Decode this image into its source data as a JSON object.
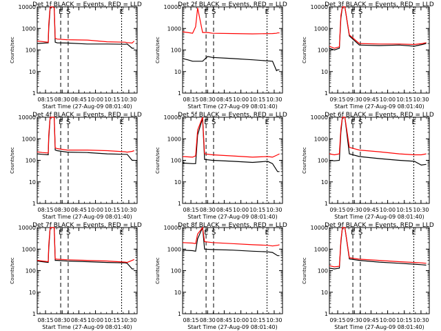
{
  "chart_data": [
    {
      "type": "line",
      "title": "Det 1f  BLACK = Events, RED = LLD",
      "xlabel": "Start Time (27-Aug-09 08:01:40)",
      "ylabel": "Counts/sec",
      "scale": "log",
      "ylim": [
        1,
        10000
      ],
      "y_ticks": [
        "1",
        "10",
        "100",
        "1000",
        "10000"
      ],
      "x_ticks": [
        "08:15",
        "08:30",
        "08:45",
        "10:00",
        "10:15",
        "10:30"
      ],
      "markers": [
        "E",
        "S",
        "E"
      ],
      "series": [
        {
          "name": "Events",
          "color": "#000000",
          "x": [
            0,
            0.11,
            0.115,
            0.13,
            0.155,
            0.17,
            0.18,
            0.2,
            0.3,
            0.5,
            0.7,
            0.88,
            0.9,
            0.95,
            0.97
          ],
          "y": [
            200,
            215,
            1000,
            9000,
            10000,
            10000,
            230,
            215,
            210,
            190,
            190,
            185,
            190,
            120,
            120
          ]
        },
        {
          "name": "LLD",
          "color": "#ff0000",
          "x": [
            0,
            0.11,
            0.115,
            0.13,
            0.155,
            0.17,
            0.18,
            0.2,
            0.3,
            0.5,
            0.7,
            0.88,
            0.9,
            0.95,
            0.97
          ],
          "y": [
            260,
            230,
            1500,
            10000,
            10000,
            9000,
            350,
            320,
            300,
            290,
            240,
            230,
            220,
            210,
            260
          ]
        }
      ]
    },
    {
      "type": "line",
      "title": "Det 2f  BLACK = Events, RED = LLD",
      "xlabel": "Start Time (27-Aug-09 08:01:40)",
      "ylabel": "Counts/sec",
      "scale": "log",
      "ylim": [
        1,
        10000
      ],
      "y_ticks": [
        "1",
        "10",
        "100",
        "1000",
        "10000"
      ],
      "x_ticks": [
        "08:15",
        "08:30",
        "08:45",
        "10:00",
        "10:15",
        "10:30"
      ],
      "markers": [
        "E",
        "S",
        "E"
      ],
      "series": [
        {
          "name": "Events",
          "color": "#000000",
          "x": [
            0,
            0.05,
            0.1,
            0.13,
            0.15,
            0.2,
            0.25,
            0.3,
            0.5,
            0.7,
            0.9,
            0.94,
            0.95,
            0.97
          ],
          "y": [
            40,
            35,
            30,
            30,
            30,
            30,
            50,
            45,
            40,
            35,
            30,
            11,
            12,
            12
          ]
        },
        {
          "name": "LLD",
          "color": "#ff0000",
          "x": [
            0,
            0.05,
            0.1,
            0.13,
            0.15,
            0.2,
            0.25,
            0.3,
            0.5,
            0.7,
            0.9,
            0.94,
            0.95,
            0.97
          ],
          "y": [
            700,
            650,
            600,
            1200,
            9000,
            650,
            650,
            600,
            580,
            560,
            580,
            600,
            620,
            620
          ]
        }
      ]
    },
    {
      "type": "line",
      "title": "Det 3f  BLACK = Events, RED = LLD",
      "xlabel": "Start Time (27-Aug-09 08:01:40)",
      "ylabel": "Counts/sec",
      "scale": "log",
      "ylim": [
        1,
        10000
      ],
      "y_ticks": [
        "1",
        "10",
        "100",
        "1000",
        "10000"
      ],
      "x_ticks": [
        "09:15",
        "09:30",
        "09:45",
        "10:00",
        "10:15",
        "10:30"
      ],
      "markers": [
        "E",
        "S",
        "E"
      ],
      "series": [
        {
          "name": "Events",
          "color": "#000000",
          "x": [
            0,
            0.05,
            0.1,
            0.115,
            0.13,
            0.155,
            0.2,
            0.3,
            0.5,
            0.7,
            0.85,
            0.93,
            0.97
          ],
          "y": [
            120,
            100,
            120,
            3000,
            10000,
            10000,
            450,
            170,
            160,
            170,
            150,
            180,
            200
          ]
        },
        {
          "name": "LLD",
          "color": "#ff0000",
          "x": [
            0,
            0.05,
            0.1,
            0.115,
            0.13,
            0.155,
            0.2,
            0.3,
            0.5,
            0.7,
            0.85,
            0.93,
            0.97
          ],
          "y": [
            150,
            120,
            140,
            4000,
            10000,
            10000,
            500,
            200,
            190,
            190,
            180,
            200,
            220
          ]
        }
      ]
    },
    {
      "type": "line",
      "title": "Det 4f  BLACK = Events, RED = LLD",
      "xlabel": "Start Time (27-Aug-09 08:01:40)",
      "ylabel": "Counts/sec",
      "scale": "log",
      "ylim": [
        1,
        10000
      ],
      "y_ticks": [
        "1",
        "10",
        "100",
        "1000",
        "10000"
      ],
      "x_ticks": [
        "08:15",
        "08:30",
        "08:45",
        "10:00",
        "10:15",
        "10:30"
      ],
      "markers": [
        "E",
        "S",
        "E"
      ],
      "series": [
        {
          "name": "Events",
          "color": "#000000",
          "x": [
            0,
            0.05,
            0.11,
            0.115,
            0.13,
            0.155,
            0.17,
            0.18,
            0.2,
            0.3,
            0.5,
            0.7,
            0.88,
            0.9,
            0.95,
            0.97
          ],
          "y": [
            200,
            190,
            180,
            1000,
            10000,
            10000,
            10000,
            300,
            280,
            240,
            230,
            200,
            190,
            190,
            100,
            100
          ]
        },
        {
          "name": "LLD",
          "color": "#ff0000",
          "x": [
            0,
            0.05,
            0.11,
            0.115,
            0.13,
            0.155,
            0.17,
            0.18,
            0.2,
            0.3,
            0.5,
            0.7,
            0.88,
            0.9,
            0.95,
            0.97
          ],
          "y": [
            250,
            230,
            220,
            1500,
            10000,
            10000,
            10000,
            380,
            350,
            300,
            300,
            280,
            250,
            240,
            260,
            280
          ]
        }
      ]
    },
    {
      "type": "line",
      "title": "Det 5f  BLACK = Events, RED = LLD",
      "xlabel": "Start Time (27-Aug-09 08:01:40)",
      "ylabel": "Counts/sec",
      "scale": "log",
      "ylim": [
        1,
        10000
      ],
      "y_ticks": [
        "1",
        "10",
        "100",
        "1000",
        "10000"
      ],
      "x_ticks": [
        "08:15",
        "08:30",
        "08:45",
        "10:00",
        "10:15",
        "10:30"
      ],
      "markers": [
        "E",
        "S",
        "E"
      ],
      "series": [
        {
          "name": "Events",
          "color": "#000000",
          "x": [
            0,
            0.1,
            0.13,
            0.15,
            0.2,
            0.22,
            0.3,
            0.5,
            0.7,
            0.85,
            0.9,
            0.95,
            0.97
          ],
          "y": [
            75,
            70,
            70,
            1500,
            9000,
            110,
            100,
            90,
            80,
            90,
            70,
            30,
            30
          ]
        },
        {
          "name": "LLD",
          "color": "#ff0000",
          "x": [
            0,
            0.1,
            0.13,
            0.15,
            0.2,
            0.22,
            0.3,
            0.5,
            0.7,
            0.85,
            0.9,
            0.95,
            0.97
          ],
          "y": [
            150,
            140,
            160,
            2500,
            10000,
            200,
            180,
            160,
            140,
            150,
            140,
            180,
            200
          ]
        }
      ]
    },
    {
      "type": "line",
      "title": "Det 6f  BLACK = Events, RED = LLD",
      "xlabel": "Start Time (27-Aug-09 08:01:40)",
      "ylabel": "Counts/sec",
      "scale": "log",
      "ylim": [
        1,
        10000
      ],
      "y_ticks": [
        "1",
        "10",
        "100",
        "1000",
        "10000"
      ],
      "x_ticks": [
        "09:15",
        "09:30",
        "09:45",
        "10:00",
        "10:15",
        "10:30"
      ],
      "markers": [
        "E",
        "S",
        "E"
      ],
      "series": [
        {
          "name": "Events",
          "color": "#000000",
          "x": [
            0,
            0.05,
            0.1,
            0.115,
            0.13,
            0.155,
            0.2,
            0.3,
            0.5,
            0.7,
            0.85,
            0.92,
            0.97
          ],
          "y": [
            100,
            95,
            100,
            2000,
            10000,
            10000,
            200,
            150,
            120,
            100,
            90,
            60,
            65
          ]
        },
        {
          "name": "LLD",
          "color": "#ff0000",
          "x": [
            0,
            0.05,
            0.1,
            0.115,
            0.13,
            0.155,
            0.2,
            0.3,
            0.5,
            0.7,
            0.85,
            0.92,
            0.97
          ],
          "y": [
            200,
            180,
            200,
            3000,
            10000,
            10000,
            400,
            300,
            250,
            200,
            180,
            180,
            200
          ]
        }
      ]
    },
    {
      "type": "line",
      "title": "Det 7f  BLACK = Events, RED = LLD",
      "xlabel": "Start Time (27-Aug-09 08:01:40)",
      "ylabel": "Counts/sec",
      "scale": "log",
      "ylim": [
        1,
        10000
      ],
      "y_ticks": [
        "1",
        "10",
        "100",
        "1000",
        "10000"
      ],
      "x_ticks": [
        "08:15",
        "08:30",
        "08:45",
        "10:00",
        "10:15",
        "10:30"
      ],
      "markers": [
        "E",
        "S",
        "E"
      ],
      "series": [
        {
          "name": "Events",
          "color": "#000000",
          "x": [
            0,
            0.05,
            0.11,
            0.115,
            0.13,
            0.155,
            0.17,
            0.18,
            0.2,
            0.3,
            0.5,
            0.7,
            0.88,
            0.9,
            0.95,
            0.97
          ],
          "y": [
            280,
            260,
            240,
            1000,
            10000,
            10000,
            10000,
            300,
            300,
            280,
            260,
            240,
            230,
            220,
            120,
            120
          ]
        },
        {
          "name": "LLD",
          "color": "#ff0000",
          "x": [
            0,
            0.05,
            0.11,
            0.115,
            0.13,
            0.155,
            0.17,
            0.18,
            0.2,
            0.3,
            0.5,
            0.7,
            0.88,
            0.9,
            0.95,
            0.97
          ],
          "y": [
            300,
            280,
            260,
            1500,
            10000,
            10000,
            10000,
            350,
            340,
            320,
            300,
            280,
            250,
            240,
            300,
            330
          ]
        }
      ]
    },
    {
      "type": "line",
      "title": "Det 8f  BLACK = Events, RED = LLD",
      "xlabel": "Start Time (27-Aug-09 08:01:40)",
      "ylabel": "Counts/sec",
      "scale": "log",
      "ylim": [
        1,
        10000
      ],
      "y_ticks": [
        "1",
        "10",
        "100",
        "1000",
        "10000"
      ],
      "x_ticks": [
        "08:15",
        "08:30",
        "08:45",
        "10:00",
        "10:15",
        "10:30"
      ],
      "markers": [
        "E",
        "S",
        "E"
      ],
      "series": [
        {
          "name": "Events",
          "color": "#000000",
          "x": [
            0,
            0.1,
            0.13,
            0.15,
            0.2,
            0.22,
            0.3,
            0.5,
            0.7,
            0.85,
            0.9,
            0.95,
            0.97
          ],
          "y": [
            900,
            850,
            800,
            3000,
            10000,
            1000,
            950,
            900,
            800,
            750,
            700,
            500,
            500
          ]
        },
        {
          "name": "LLD",
          "color": "#ff0000",
          "x": [
            0,
            0.1,
            0.13,
            0.15,
            0.2,
            0.22,
            0.3,
            0.5,
            0.7,
            0.85,
            0.9,
            0.95,
            0.97
          ],
          "y": [
            2000,
            1900,
            1800,
            5000,
            10000,
            2200,
            2000,
            1800,
            1600,
            1500,
            1400,
            1500,
            1600
          ]
        }
      ]
    },
    {
      "type": "line",
      "title": "Det 9f  BLACK = Events, RED = LLD",
      "xlabel": "Start Time (27-Aug-09 08:01:40)",
      "ylabel": "Counts/sec",
      "scale": "log",
      "ylim": [
        1,
        10000
      ],
      "y_ticks": [
        "1",
        "10",
        "100",
        "1000",
        "10000"
      ],
      "x_ticks": [
        "09:15",
        "09:30",
        "09:45",
        "10:00",
        "10:15",
        "10:30"
      ],
      "markers": [
        "E",
        "S",
        "E"
      ],
      "series": [
        {
          "name": "Events",
          "color": "#000000",
          "x": [
            0,
            0.05,
            0.1,
            0.115,
            0.13,
            0.155,
            0.2,
            0.3,
            0.5,
            0.7,
            0.85,
            0.92,
            0.97
          ],
          "y": [
            130,
            120,
            130,
            2000,
            10000,
            10000,
            350,
            300,
            250,
            220,
            200,
            190,
            180
          ]
        },
        {
          "name": "LLD",
          "color": "#ff0000",
          "x": [
            0,
            0.05,
            0.1,
            0.115,
            0.13,
            0.155,
            0.2,
            0.3,
            0.5,
            0.7,
            0.85,
            0.92,
            0.97
          ],
          "y": [
            170,
            150,
            160,
            2500,
            10000,
            10000,
            400,
            340,
            300,
            260,
            240,
            230,
            220
          ]
        }
      ]
    }
  ]
}
